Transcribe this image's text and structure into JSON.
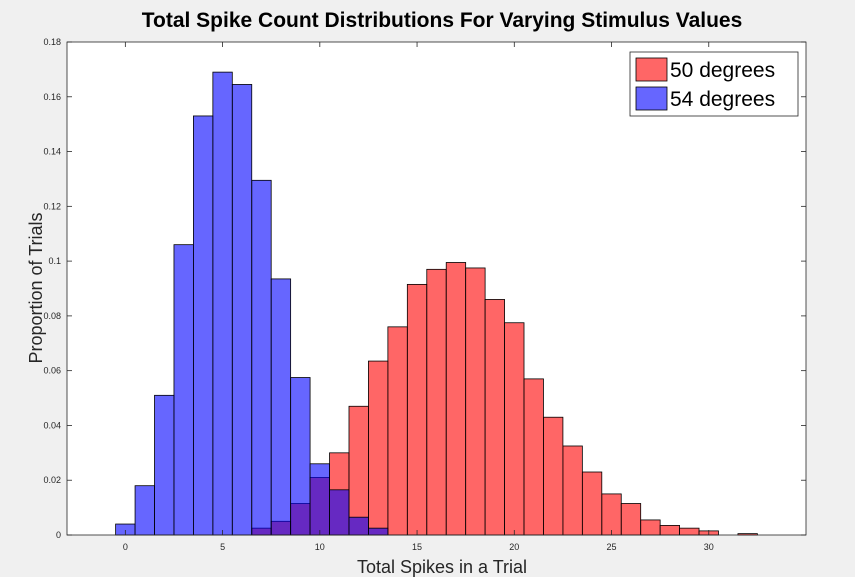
{
  "chart_data": {
    "type": "bar",
    "title": "Total Spike Count Distributions For Varying Stimulus Values",
    "xlabel": "Total Spikes in a Trial",
    "ylabel": "Proportion of Trials",
    "xlim": [
      -3,
      35
    ],
    "ylim": [
      0,
      0.18
    ],
    "xticks": [
      0,
      5,
      10,
      15,
      20,
      25,
      30
    ],
    "yticks": [
      0,
      0.02,
      0.04,
      0.06,
      0.08,
      0.1,
      0.12,
      0.14,
      0.16,
      0.18
    ],
    "ytick_labels": [
      "0",
      "0.02",
      "0.04",
      "0.06",
      "0.08",
      "0.1",
      "0.12",
      "0.14",
      "0.16",
      "0.18"
    ],
    "bin_width": 1,
    "legend_position": "top-right",
    "series": [
      {
        "name": "50 degrees",
        "color": "#ff0000",
        "alpha": 0.6,
        "bin_starts": [
          7,
          8,
          9,
          10,
          11,
          12,
          13,
          14,
          15,
          16,
          17,
          18,
          19,
          20,
          21,
          22,
          23,
          24,
          25,
          26,
          27,
          28,
          29,
          30,
          31,
          32
        ],
        "values": [
          0.0025,
          0.005,
          0.0115,
          0.021,
          0.03,
          0.047,
          0.0635,
          0.076,
          0.0915,
          0.097,
          0.0995,
          0.0975,
          0.086,
          0.0775,
          0.057,
          0.043,
          0.0325,
          0.023,
          0.015,
          0.0115,
          0.0055,
          0.0035,
          0.0025,
          0.0015,
          0,
          0.0005
        ]
      },
      {
        "name": "54 degrees",
        "color": "#0000ff",
        "alpha": 0.6,
        "bin_starts": [
          0,
          1,
          2,
          3,
          4,
          5,
          6,
          7,
          8,
          9,
          10,
          11,
          12,
          13
        ],
        "values": [
          0.004,
          0.018,
          0.051,
          0.106,
          0.153,
          0.169,
          0.1645,
          0.1295,
          0.0935,
          0.0575,
          0.026,
          0.0165,
          0.0065,
          0.0025
        ]
      }
    ]
  }
}
